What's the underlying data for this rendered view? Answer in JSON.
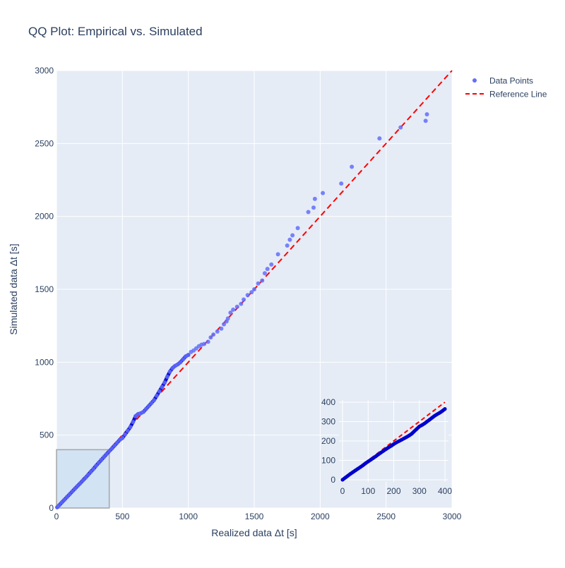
{
  "chart_data": {
    "type": "scatter",
    "title": "QQ Plot: Empirical vs. Simulated",
    "xlabel": "Realized data Δt [s]",
    "ylabel": "Simulated data Δt [s]",
    "xlim": [
      0,
      3000
    ],
    "ylim": [
      0,
      3000
    ],
    "x_ticks": [
      0,
      500,
      1000,
      1500,
      2000,
      2500,
      3000
    ],
    "y_ticks": [
      0,
      500,
      1000,
      1500,
      2000,
      2500,
      3000
    ],
    "grid": true,
    "legend": "top-right",
    "series": [
      {
        "name": "Data Points",
        "kind": "markers",
        "color": "#636efa",
        "x": [
          5,
          20,
          40,
          60,
          80,
          100,
          120,
          140,
          160,
          180,
          200,
          220,
          240,
          260,
          280,
          300,
          320,
          340,
          360,
          380,
          400,
          420,
          440,
          460,
          480,
          500,
          520,
          540,
          560,
          580,
          600,
          620,
          640,
          660,
          680,
          700,
          720,
          740,
          760,
          780,
          800,
          820,
          840,
          860,
          880,
          900,
          920,
          940,
          960,
          980,
          1000,
          1020,
          1040,
          1060,
          1080,
          1100,
          1120,
          1150,
          1170,
          1190,
          1220,
          1250,
          1270,
          1290,
          1300,
          1320,
          1340,
          1370,
          1400,
          1420,
          1450,
          1480,
          1500,
          1530,
          1560,
          1580,
          1600,
          1630,
          1680,
          1750,
          1770,
          1790,
          1830,
          1910,
          1950,
          1960,
          2020,
          2160,
          2240,
          2450,
          2610,
          2800,
          2810
        ],
        "y": [
          5,
          19,
          38,
          57,
          76,
          95,
          114,
          133,
          152,
          170,
          189,
          208,
          228,
          248,
          268,
          290,
          310,
          330,
          350,
          370,
          390,
          408,
          428,
          448,
          468,
          480,
          505,
          530,
          555,
          590,
          630,
          645,
          650,
          660,
          680,
          700,
          720,
          740,
          770,
          800,
          830,
          860,
          900,
          935,
          960,
          975,
          985,
          1000,
          1020,
          1040,
          1050,
          1070,
          1080,
          1095,
          1110,
          1120,
          1125,
          1140,
          1170,
          1190,
          1210,
          1230,
          1260,
          1280,
          1300,
          1340,
          1360,
          1380,
          1400,
          1430,
          1460,
          1480,
          1500,
          1540,
          1560,
          1610,
          1640,
          1670,
          1740,
          1800,
          1840,
          1870,
          1920,
          2030,
          2060,
          2120,
          2160,
          2225,
          2340,
          2535,
          2610,
          2655,
          2700
        ]
      },
      {
        "name": "Reference Line",
        "kind": "line",
        "color": "#ff0000",
        "x": [
          0,
          3000
        ],
        "y": [
          0,
          3000
        ]
      }
    ],
    "zoom_region": {
      "x": [
        0,
        400
      ],
      "y": [
        0,
        400
      ]
    },
    "inset": {
      "xlim": [
        0,
        400
      ],
      "ylim": [
        0,
        400
      ],
      "x_ticks": [
        0,
        100,
        200,
        300,
        400
      ],
      "y_ticks": [
        0,
        100,
        200,
        300,
        400
      ],
      "points_x": [
        0,
        10,
        20,
        30,
        40,
        50,
        60,
        70,
        80,
        90,
        100,
        110,
        120,
        130,
        140,
        150,
        160,
        170,
        180,
        190,
        200,
        210,
        220,
        230,
        240,
        250,
        260,
        270,
        280,
        290,
        300,
        310,
        320,
        330,
        340,
        350,
        360,
        370,
        380,
        390,
        400
      ],
      "points_y": [
        0,
        10,
        20,
        30,
        39,
        48,
        57,
        66,
        75,
        85,
        94,
        103,
        112,
        121,
        131,
        140,
        149,
        158,
        167,
        175,
        184,
        192,
        199,
        206,
        213,
        220,
        228,
        237,
        250,
        262,
        275,
        282,
        290,
        300,
        310,
        320,
        330,
        338,
        346,
        355,
        365
      ],
      "line": {
        "x": [
          0,
          400
        ],
        "y": [
          0,
          400
        ]
      }
    }
  },
  "legend": {
    "items": [
      {
        "label": "Data Points",
        "color": "#636efa",
        "kind": "marker"
      },
      {
        "label": "Reference Line",
        "color": "#ff0000",
        "kind": "dash"
      }
    ]
  },
  "colors": {
    "plot_bg": "#e5ecf6",
    "grid": "#ffffff",
    "axis_text": "#2a3f5f",
    "points": "#636efa",
    "points_dense": "#0000cc",
    "reference": "#ff0000",
    "zoom_fill": "#cfe2f3",
    "zoom_stroke": "#a6a6a6"
  }
}
